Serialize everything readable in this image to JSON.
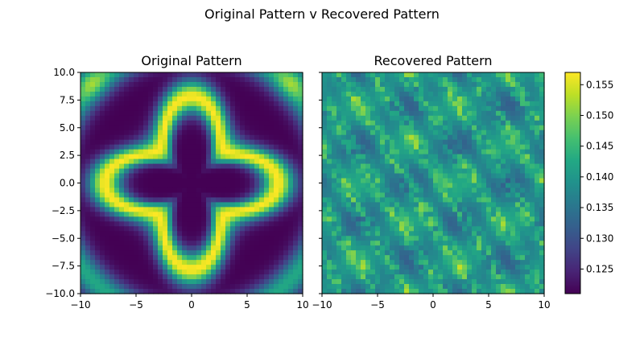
{
  "figure": {
    "suptitle": "Original Pattern v Recovered Pattern"
  },
  "chart_data": [
    {
      "type": "heatmap",
      "title": "Original Pattern",
      "xlabel": "",
      "ylabel": "",
      "xlim": [
        -10,
        10
      ],
      "ylim": [
        -10,
        10
      ],
      "xticks": [
        -10,
        -5,
        0,
        5,
        10
      ],
      "xtick_labels": [
        "−10",
        "−5",
        "0",
        "5",
        "10"
      ],
      "yticks": [
        10.0,
        7.5,
        5.0,
        2.5,
        0.0,
        -2.5,
        -5.0,
        -7.5,
        -10.0
      ],
      "ytick_labels": [
        "10.0",
        "7.5",
        "5.0",
        "2.5",
        "0.0",
        "−2.5",
        "−5.0",
        "−7.5",
        "−10.0"
      ],
      "colormap": "viridis",
      "grid": false
    },
    {
      "type": "heatmap",
      "title": "Recovered Pattern",
      "xlabel": "",
      "ylabel": "",
      "xlim": [
        -10,
        10
      ],
      "ylim": [
        -10,
        10
      ],
      "xticks": [
        -10,
        -5,
        0,
        5,
        10
      ],
      "xtick_labels": [
        "−10",
        "−5",
        "0",
        "5",
        "10"
      ],
      "yticks": [
        10.0,
        7.5,
        5.0,
        2.5,
        0.0,
        -2.5,
        -5.0,
        -7.5,
        -10.0
      ],
      "ytick_labels_shown": false,
      "colormap": "viridis",
      "grid": false,
      "colorbar": {
        "range": [
          0.121,
          0.157
        ],
        "ticks": [
          0.155,
          0.15,
          0.145,
          0.14,
          0.135,
          0.13,
          0.125
        ],
        "tick_labels": [
          "0.155",
          "0.150",
          "0.145",
          "0.140",
          "0.135",
          "0.130",
          "0.125"
        ]
      }
    }
  ]
}
